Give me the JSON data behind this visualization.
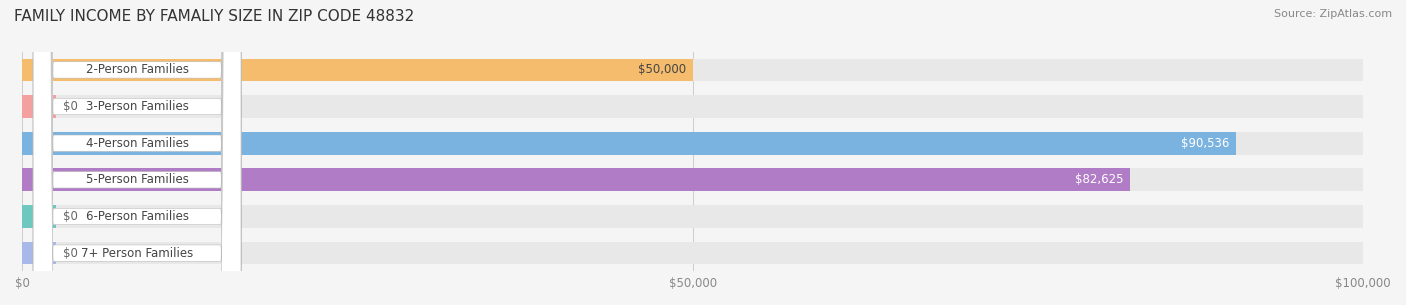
{
  "title": "FAMILY INCOME BY FAMALIY SIZE IN ZIP CODE 48832",
  "source": "Source: ZipAtlas.com",
  "categories": [
    "2-Person Families",
    "3-Person Families",
    "4-Person Families",
    "5-Person Families",
    "6-Person Families",
    "7+ Person Families"
  ],
  "values": [
    50000,
    0,
    90536,
    82625,
    0,
    0
  ],
  "bar_colors": [
    "#f5bc6e",
    "#f4a0a0",
    "#7ab3e0",
    "#b07cc6",
    "#6ec8c0",
    "#a8b8e8"
  ],
  "label_colors": [
    "#444444",
    "#444444",
    "#ffffff",
    "#ffffff",
    "#444444",
    "#444444"
  ],
  "value_labels": [
    "$50,000",
    "$0",
    "$90,536",
    "$82,625",
    "$0",
    "$0"
  ],
  "xlim": [
    0,
    100000
  ],
  "xticks": [
    0,
    50000,
    100000
  ],
  "xtick_labels": [
    "$0",
    "$50,000",
    "$100,000"
  ],
  "background_color": "#f5f5f5",
  "bar_background_color": "#e8e8e8",
  "bar_height": 0.62,
  "title_fontsize": 11,
  "label_fontsize": 8.5,
  "value_fontsize": 8.5,
  "source_fontsize": 8,
  "pill_rounding": 1500
}
